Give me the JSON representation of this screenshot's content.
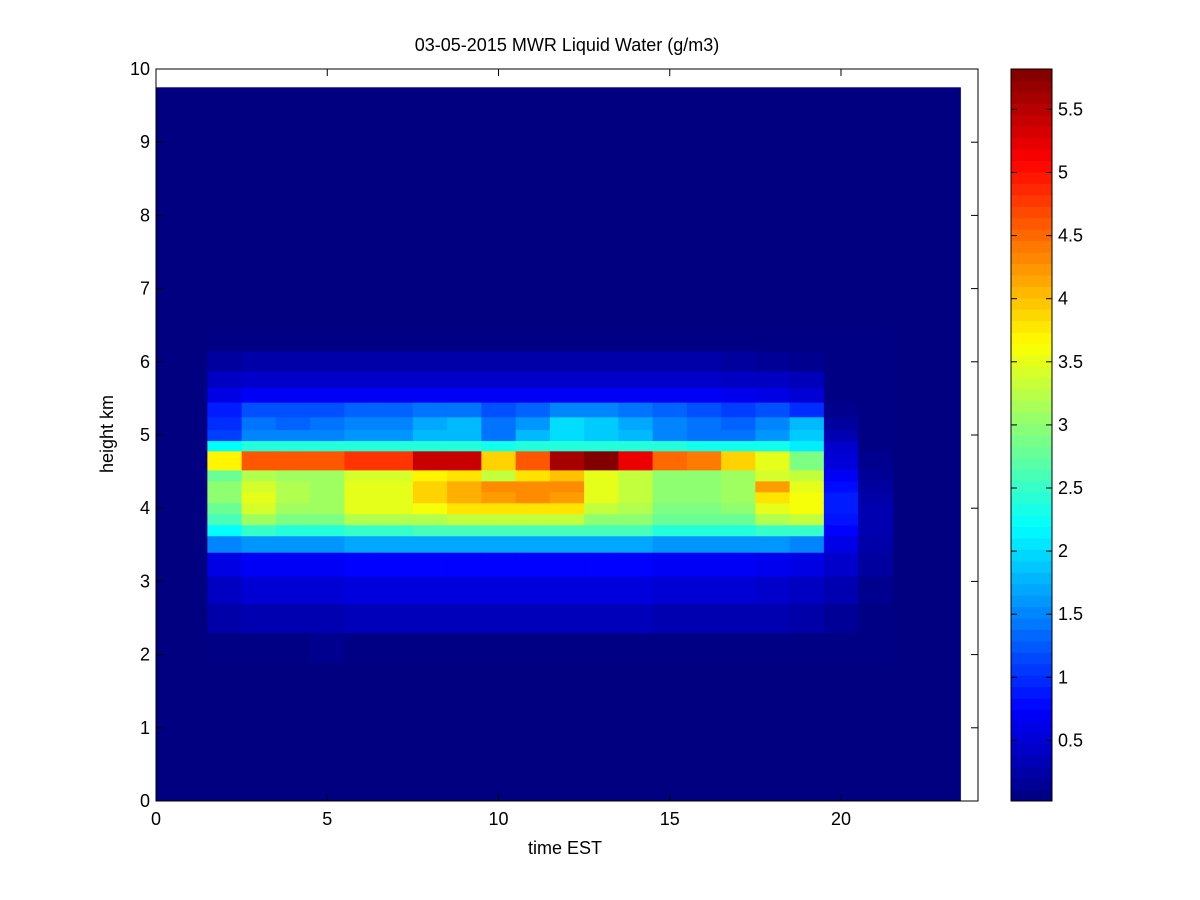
{
  "chart_data": {
    "type": "heatmap",
    "title": "03-05-2015 MWR Liquid Water (g/m3)",
    "xlabel": "time EST",
    "ylabel": "height km",
    "xlim": [
      0,
      24
    ],
    "ylim": [
      0,
      10
    ],
    "x_ticks": [
      0,
      5,
      10,
      15,
      20
    ],
    "y_ticks": [
      0,
      1,
      2,
      3,
      4,
      5,
      6,
      7,
      8,
      9,
      10
    ],
    "colorbar": {
      "range": [
        0.02,
        5.82
      ],
      "ticks": [
        0.5,
        1,
        1.5,
        2,
        2.5,
        3,
        3.5,
        4,
        4.5,
        5,
        5.5
      ],
      "colormap": "jet"
    },
    "data_extent": {
      "x": [
        0,
        23.5
      ],
      "y": [
        0,
        9.75
      ]
    },
    "times": [
      2,
      3,
      4,
      5,
      6,
      7,
      8,
      9,
      10,
      11,
      12,
      13,
      14,
      15,
      16,
      17,
      18,
      19,
      20,
      21
    ],
    "profiles": {
      "heights": [
        2.1,
        2.5,
        2.9,
        3.25,
        3.55,
        3.7,
        3.85,
        4.0,
        4.15,
        4.3,
        4.45,
        4.6,
        4.72,
        4.85,
        5.0,
        5.15,
        5.35,
        5.55,
        5.75,
        6.0,
        6.3
      ],
      "values": [
        [
          0.05,
          0.25,
          0.4,
          0.6,
          1.5,
          2.2,
          2.6,
          2.8,
          3.0,
          3.0,
          2.8,
          3.7,
          3.7,
          2.2,
          1.1,
          1.0,
          0.9,
          0.6,
          0.4,
          0.2,
          0.05
        ],
        [
          0.05,
          0.3,
          0.5,
          0.7,
          1.6,
          2.5,
          3.1,
          3.4,
          3.5,
          3.4,
          3.2,
          4.6,
          4.6,
          2.4,
          1.5,
          1.4,
          1.2,
          0.7,
          0.45,
          0.25,
          0.05
        ],
        [
          0.05,
          0.3,
          0.5,
          0.7,
          1.6,
          2.4,
          2.9,
          3.1,
          3.2,
          3.2,
          3.1,
          4.6,
          4.6,
          2.4,
          1.5,
          1.3,
          1.2,
          0.7,
          0.45,
          0.25,
          0.05
        ],
        [
          0.1,
          0.3,
          0.5,
          0.7,
          1.6,
          2.4,
          2.9,
          3.1,
          3.1,
          3.1,
          3.1,
          4.6,
          4.6,
          2.4,
          1.5,
          1.4,
          1.2,
          0.7,
          0.45,
          0.25,
          0.05
        ],
        [
          0.05,
          0.35,
          0.55,
          0.75,
          1.7,
          2.5,
          3.2,
          3.5,
          3.5,
          3.5,
          3.4,
          4.8,
          4.8,
          2.4,
          1.6,
          1.5,
          1.3,
          0.7,
          0.45,
          0.25,
          0.05
        ],
        [
          0.05,
          0.35,
          0.55,
          0.75,
          1.7,
          2.5,
          3.2,
          3.5,
          3.5,
          3.5,
          3.4,
          4.8,
          4.8,
          2.4,
          1.6,
          1.5,
          1.3,
          0.7,
          0.45,
          0.25,
          0.05
        ],
        [
          0.05,
          0.35,
          0.55,
          0.75,
          1.7,
          2.6,
          3.2,
          3.6,
          3.9,
          3.9,
          3.7,
          5.4,
          5.4,
          2.4,
          1.8,
          1.7,
          1.4,
          0.7,
          0.45,
          0.25,
          0.05
        ],
        [
          0.05,
          0.35,
          0.55,
          0.75,
          1.7,
          2.6,
          3.3,
          3.8,
          4.1,
          4.1,
          3.8,
          5.4,
          5.4,
          2.4,
          1.8,
          1.8,
          1.4,
          0.7,
          0.45,
          0.25,
          0.05
        ],
        [
          0.05,
          0.35,
          0.55,
          0.75,
          1.7,
          2.6,
          3.3,
          3.8,
          4.2,
          4.3,
          3.3,
          3.9,
          3.9,
          2.3,
          1.4,
          1.4,
          1.2,
          0.7,
          0.45,
          0.25,
          0.05
        ],
        [
          0.05,
          0.35,
          0.55,
          0.75,
          1.7,
          2.6,
          3.3,
          3.8,
          4.3,
          4.3,
          3.8,
          4.6,
          4.6,
          2.4,
          1.8,
          1.6,
          1.3,
          0.7,
          0.45,
          0.25,
          0.05
        ],
        [
          0.05,
          0.35,
          0.55,
          0.75,
          1.7,
          2.6,
          3.3,
          3.8,
          4.2,
          4.3,
          4.0,
          5.6,
          5.6,
          2.4,
          2.0,
          2.0,
          1.5,
          0.7,
          0.45,
          0.25,
          0.05
        ],
        [
          0.05,
          0.35,
          0.55,
          0.75,
          1.7,
          2.6,
          3.0,
          3.3,
          3.5,
          3.5,
          3.5,
          5.8,
          5.8,
          2.4,
          1.9,
          1.9,
          1.5,
          0.7,
          0.45,
          0.25,
          0.05
        ],
        [
          0.05,
          0.35,
          0.55,
          0.75,
          1.7,
          2.6,
          3.0,
          3.2,
          3.3,
          3.3,
          3.3,
          5.2,
          5.2,
          2.4,
          1.8,
          1.7,
          1.4,
          0.7,
          0.45,
          0.25,
          0.05
        ],
        [
          0.05,
          0.3,
          0.5,
          0.7,
          1.6,
          2.4,
          2.8,
          2.9,
          3.0,
          3.0,
          3.0,
          4.5,
          4.5,
          2.4,
          1.5,
          1.5,
          1.3,
          0.7,
          0.45,
          0.25,
          0.05
        ],
        [
          0.05,
          0.3,
          0.5,
          0.7,
          1.6,
          2.4,
          2.8,
          2.9,
          3.0,
          3.0,
          3.0,
          4.4,
          4.4,
          2.3,
          1.4,
          1.4,
          1.2,
          0.7,
          0.45,
          0.25,
          0.05
        ],
        [
          0.05,
          0.3,
          0.5,
          0.7,
          1.6,
          2.4,
          2.8,
          3.0,
          3.1,
          3.1,
          3.1,
          3.9,
          3.9,
          2.3,
          1.4,
          1.3,
          1.1,
          0.65,
          0.4,
          0.2,
          0.05
        ],
        [
          0.05,
          0.3,
          0.45,
          0.65,
          1.6,
          2.5,
          3.2,
          3.5,
          3.8,
          4.2,
          3.4,
          3.5,
          3.5,
          2.3,
          1.6,
          1.5,
          1.2,
          0.6,
          0.4,
          0.15,
          0.05
        ],
        [
          0.05,
          0.25,
          0.4,
          0.6,
          1.5,
          2.5,
          3.3,
          3.6,
          3.6,
          3.5,
          3.3,
          2.9,
          2.9,
          2.1,
          1.9,
          1.8,
          1.0,
          0.5,
          0.35,
          0.1,
          0.05
        ],
        [
          0.05,
          0.15,
          0.3,
          0.45,
          0.6,
          0.75,
          0.85,
          0.9,
          0.9,
          0.8,
          0.7,
          0.55,
          0.5,
          0.45,
          0.3,
          0.2,
          0.1,
          0.05,
          0.05,
          0.05,
          0.05
        ],
        [
          0.05,
          0.05,
          0.1,
          0.2,
          0.25,
          0.3,
          0.3,
          0.3,
          0.25,
          0.2,
          0.15,
          0.1,
          0.1,
          0.05,
          0.05,
          0.05,
          0.05,
          0.05,
          0.05,
          0.05,
          0.05
        ]
      ]
    }
  }
}
